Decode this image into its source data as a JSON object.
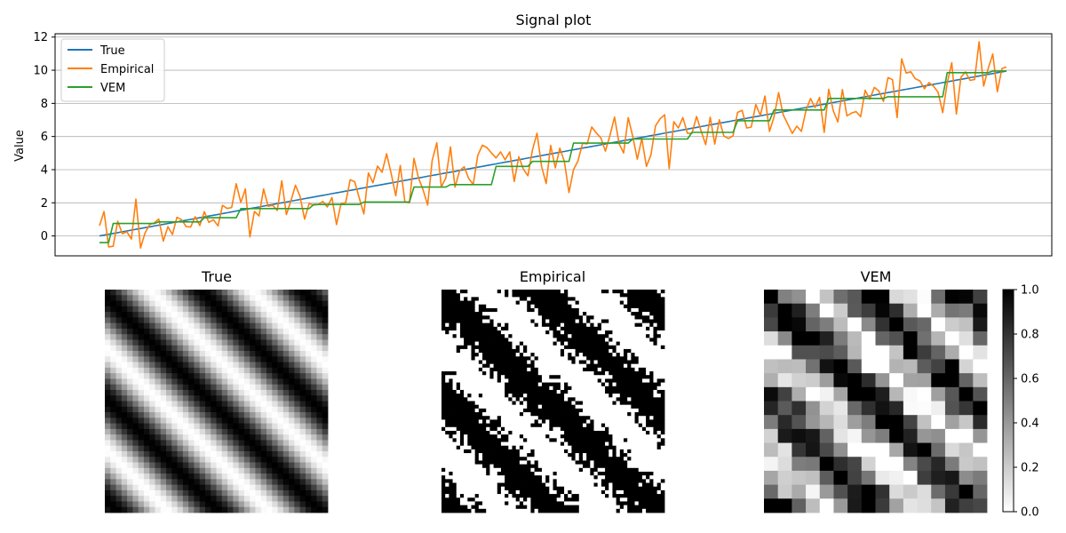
{
  "chart_data": [
    {
      "type": "line",
      "title": "Signal plot",
      "xlabel": "",
      "ylabel": "Value",
      "ylim": [
        -1.2,
        12.2
      ],
      "yticks": [
        0,
        2,
        4,
        6,
        8,
        10,
        12
      ],
      "ygrid": true,
      "legend": "top-left",
      "n_points": 200,
      "series": [
        {
          "name": "True",
          "color": "#1f77b4",
          "kind": "linear",
          "start": 0,
          "end": 9.95
        },
        {
          "name": "Empirical",
          "color": "#ff7f0e",
          "kind": "noisy",
          "start": 0,
          "end": 9.95,
          "noise_sd": 0.85
        },
        {
          "name": "VEM",
          "color": "#2ca02c",
          "kind": "piecewise",
          "steps": [
            {
              "to": 3,
              "value": -0.4
            },
            {
              "to": 16,
              "value": 0.75
            },
            {
              "to": 28,
              "value": 0.85
            },
            {
              "to": 38,
              "value": 1.1
            },
            {
              "to": 58,
              "value": 1.65
            },
            {
              "to": 72,
              "value": 1.9
            },
            {
              "to": 86,
              "value": 2.05
            },
            {
              "to": 96,
              "value": 2.95
            },
            {
              "to": 108,
              "value": 3.1
            },
            {
              "to": 118,
              "value": 4.2
            },
            {
              "to": 130,
              "value": 4.5
            },
            {
              "to": 146,
              "value": 5.6
            },
            {
              "to": 162,
              "value": 5.85
            },
            {
              "to": 174,
              "value": 6.25
            },
            {
              "to": 184,
              "value": 6.95
            },
            {
              "to": 200,
              "value": 7.6
            }
          ],
          "tail": [
            {
              "to": 216,
              "value": 8.3
            },
            {
              "to": 232,
              "value": 8.4
            },
            {
              "to": 244,
              "value": 9.85
            },
            {
              "to": 250,
              "value": 9.95
            }
          ]
        }
      ]
    },
    {
      "type": "heatmap",
      "title": "True",
      "pattern": "smooth-diagonal-bands",
      "cmap": "gray_r"
    },
    {
      "type": "heatmap",
      "title": "Empirical",
      "pattern": "noisy-binary-diagonal-bands",
      "cmap": "gray_r"
    },
    {
      "type": "heatmap",
      "title": "VEM",
      "pattern": "blocky-diagonal-bands",
      "cmap": "gray_r",
      "colorbar": {
        "min": 0.0,
        "max": 1.0,
        "ticks": [
          "0.0",
          "0.2",
          "0.4",
          "0.6",
          "0.8",
          "1.0"
        ]
      }
    }
  ]
}
